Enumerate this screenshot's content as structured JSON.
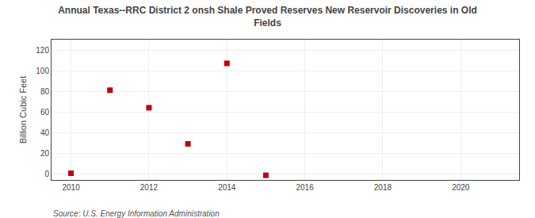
{
  "chart_data": {
    "type": "scatter",
    "title": "Annual Texas--RRC District 2 onsh Shale Proved Reserves New Reservoir Discoveries in Old\nFields",
    "ylabel": "Billion Cubic Feet",
    "annotations": [
      "Source: U.S. Energy Information Administration"
    ],
    "x": [
      2010,
      2011,
      2012,
      2013,
      2014,
      2015
    ],
    "values": [
      0.5,
      81,
      64,
      29,
      107,
      -1.5
    ],
    "color": "#c00010",
    "marker": "square",
    "xlim": [
      2009.5,
      2021.5
    ],
    "ylim": [
      -6,
      130
    ],
    "xticks": [
      2010,
      2012,
      2014,
      2016,
      2018,
      2020
    ],
    "yticks": [
      0,
      20,
      40,
      60,
      80,
      100,
      120
    ],
    "grid": true
  }
}
